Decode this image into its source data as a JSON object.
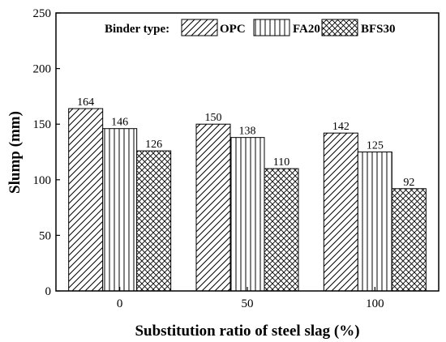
{
  "chart_data": {
    "type": "bar",
    "categories": [
      "0",
      "50",
      "100"
    ],
    "series": [
      {
        "name": "OPC",
        "values": [
          164,
          150,
          142
        ],
        "pattern": "diagonal-hatch"
      },
      {
        "name": "FA20",
        "values": [
          146,
          138,
          125
        ],
        "pattern": "vertical-lines"
      },
      {
        "name": "BFS30",
        "values": [
          126,
          110,
          92
        ],
        "pattern": "cross-hatch"
      }
    ],
    "data_labels": [
      [
        "164",
        "150",
        "142"
      ],
      [
        "146",
        "138",
        "125"
      ],
      [
        "126",
        "110",
        "92"
      ]
    ],
    "xlabel": "Substitution ratio of steel slag (%)",
    "ylabel": "Slump (mm)",
    "ylim": [
      0,
      250
    ],
    "yticks": [
      "0",
      "50",
      "100",
      "150",
      "200",
      "250"
    ],
    "legend": {
      "title": "Binder type:",
      "position": "top",
      "orientation": "horizontal"
    },
    "grid": false
  }
}
